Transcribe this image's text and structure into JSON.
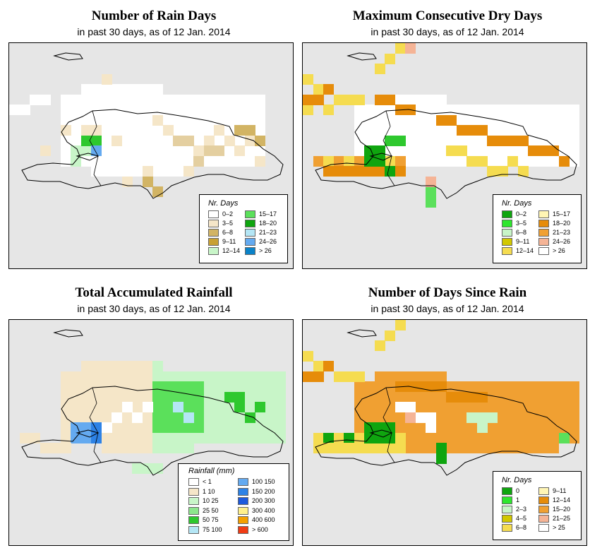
{
  "colors": {
    "water": "#e6e6e6",
    "white": "#ffffff",
    "tan1": "#f5e6c8",
    "tan2": "#e4cfa0",
    "tan3": "#d2b464",
    "tan4": "#c8a032",
    "lgreen": "#c8f5c8",
    "green1": "#5be05b",
    "green2": "#2ec82e",
    "dgreen": "#0fa50f",
    "lblue": "#b4e6f5",
    "blue1": "#64aaf0",
    "blue2": "#2d82e6",
    "yellow1": "#fff5b4",
    "yellow2": "#f5dc50",
    "orange1": "#f0a032",
    "orange2": "#e68c0a",
    "salmon": "#f5b496",
    "red": "#f03c14"
  },
  "panels": [
    {
      "title": "Number of Rain Days",
      "subtitle": "in past 30 days, as of  12 Jan. 2014",
      "legend": {
        "title": "Nr. Days",
        "items": [
          {
            "label": "0–2",
            "color": "#ffffff"
          },
          {
            "label": "3–5",
            "color": "#f5e6c8"
          },
          {
            "label": "6–8",
            "color": "#d2b464"
          },
          {
            "label": "9–11",
            "color": "#c8a032"
          },
          {
            "label": "12–14",
            "color": "#c8f5c8"
          },
          {
            "label": "15–17",
            "color": "#5be05b"
          },
          {
            "label": "18–20",
            "color": "#0fa50f"
          },
          {
            "label": "21–23",
            "color": "#b4e6f5"
          },
          {
            "label": "24–26",
            "color": "#64aaf0"
          },
          {
            "label": "> 26",
            "color": "#0a82c8"
          }
        ]
      }
    },
    {
      "title": "Maximum Consecutive Dry Days",
      "subtitle": "in past 30 days, as of  12 Jan. 2014",
      "legend": {
        "title": "Nr. Days",
        "items": [
          {
            "label": "0–2",
            "color": "#0fa50f"
          },
          {
            "label": "3–5",
            "color": "#2ee62e"
          },
          {
            "label": "6–8",
            "color": "#c8f5c8"
          },
          {
            "label": "9–11",
            "color": "#d2c800"
          },
          {
            "label": "12–14",
            "color": "#f5dc50"
          },
          {
            "label": "15–17",
            "color": "#fff5b4"
          },
          {
            "label": "18–20",
            "color": "#e68c0a"
          },
          {
            "label": "21–23",
            "color": "#f0a032"
          },
          {
            "label": "24–26",
            "color": "#f5b496"
          },
          {
            "label": "> 26",
            "color": "#ffffff"
          }
        ]
      }
    },
    {
      "title": "Total Accumulated Rainfall",
      "subtitle": "in past 30 days, as of  12 Jan. 2014",
      "legend": {
        "title": "Rainfall (mm)",
        "items": [
          {
            "label": "< 1",
            "color": "#ffffff"
          },
          {
            "label": "1    10",
            "color": "#f5e6c8"
          },
          {
            "label": "10    25",
            "color": "#c8f5c8"
          },
          {
            "label": "25    50",
            "color": "#8ce68c"
          },
          {
            "label": "50    75",
            "color": "#2ec82e"
          },
          {
            "label": "75   100",
            "color": "#b4e6f5"
          },
          {
            "label": "100   150",
            "color": "#64aaf0"
          },
          {
            "label": "150   200",
            "color": "#2d82e6"
          },
          {
            "label": "200   300",
            "color": "#1e5adc"
          },
          {
            "label": "300   400",
            "color": "#fff08c"
          },
          {
            "label": "400   600",
            "color": "#f5a000"
          },
          {
            "label": "> 600",
            "color": "#f03c14"
          }
        ]
      }
    },
    {
      "title": "Number of Days Since Rain",
      "subtitle": "in past 30 days, as of  12 Jan. 2014",
      "legend": {
        "title": "Nr. Days",
        "items": [
          {
            "label": "0",
            "color": "#0fa50f"
          },
          {
            "label": "1",
            "color": "#2ee62e"
          },
          {
            "label": "2–3",
            "color": "#c8f5c8"
          },
          {
            "label": "4–5",
            "color": "#d2c800"
          },
          {
            "label": "6–8",
            "color": "#f5dc50"
          },
          {
            "label": "9–11",
            "color": "#fff5b4"
          },
          {
            "label": "12–14",
            "color": "#e68c0a"
          },
          {
            "label": "15–20",
            "color": "#f0a032"
          },
          {
            "label": "21–25",
            "color": "#f5b496"
          },
          {
            "label": "> 25",
            "color": "#ffffff"
          }
        ]
      }
    }
  ]
}
